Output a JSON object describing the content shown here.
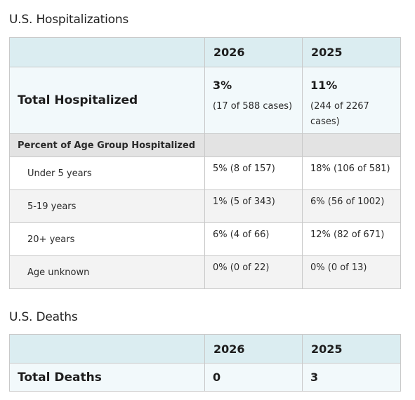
{
  "hospitalizations": {
    "title": "U.S. Hospitalizations",
    "columns": [
      "",
      "2026",
      "2025"
    ],
    "total": {
      "label": "Total Hospitalized",
      "values": [
        {
          "pct": "3%",
          "detail": "(17 of 588 cases)"
        },
        {
          "pct": "11%",
          "detail": "(244 of 2267 cases)"
        }
      ]
    },
    "group_header": "Percent of Age Group Hospitalized",
    "age_rows": [
      {
        "label": "Under 5 years",
        "values": [
          "5% (8 of 157)",
          "18% (106 of 581)"
        ]
      },
      {
        "label": "5-19 years",
        "values": [
          "1% (5 of 343)",
          "6% (56 of 1002)"
        ]
      },
      {
        "label": "20+ years",
        "values": [
          "6% (4 of 66)",
          "12% (82 of 671)"
        ]
      },
      {
        "label": "Age unknown",
        "values": [
          "0% (0 of 22)",
          "0% (0 of 13)"
        ]
      }
    ]
  },
  "deaths": {
    "title": "U.S. Deaths",
    "columns": [
      "",
      "2026",
      "2025"
    ],
    "total": {
      "label": "Total Deaths",
      "values": [
        "0",
        "3"
      ]
    }
  }
}
